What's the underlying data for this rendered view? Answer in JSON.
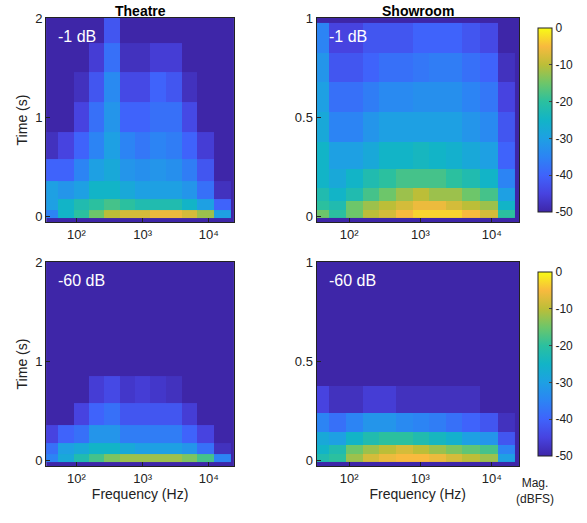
{
  "chart_data": [
    {
      "type": "heatmap",
      "title": "Theatre",
      "annotation": "-1 dB",
      "ylabel": "Time (s)",
      "log": "x",
      "xlim": [
        35,
        24000
      ],
      "xticks": [
        {
          "value": 100,
          "label": "10²"
        },
        {
          "value": 1000,
          "label": "10³"
        },
        {
          "value": 10000,
          "label": "10⁴"
        }
      ],
      "ylim": [
        -0.06,
        2
      ],
      "yticks": [
        0,
        1,
        2
      ],
      "x": [
        40,
        70,
        120,
        200,
        350,
        600,
        1000,
        1700,
        3000,
        5000,
        9000,
        16000
      ],
      "y": [
        0.02,
        0.1,
        0.25,
        0.45,
        0.7,
        1.0,
        1.3,
        1.6,
        1.9
      ],
      "z": [
        [
          -35,
          -25,
          -20,
          -15,
          -10,
          -8,
          -8,
          -6,
          -6,
          -8,
          -12,
          -30
        ],
        [
          -30,
          -25,
          -22,
          -20,
          -18,
          -20,
          -22,
          -22,
          -22,
          -25,
          -30,
          -40
        ],
        [
          -30,
          -32,
          -30,
          -25,
          -25,
          -28,
          -30,
          -30,
          -30,
          -32,
          -38,
          -48
        ],
        [
          -40,
          -40,
          -35,
          -30,
          -28,
          -32,
          -33,
          -32,
          -33,
          -36,
          -42,
          -50
        ],
        [
          -48,
          -45,
          -40,
          -35,
          -30,
          -35,
          -37,
          -35,
          -36,
          -40,
          -46,
          -50
        ],
        [
          -50,
          -50,
          -45,
          -38,
          -32,
          -40,
          -40,
          -38,
          -38,
          -44,
          -50,
          -50
        ],
        [
          -50,
          -50,
          -48,
          -42,
          -34,
          -44,
          -44,
          -40,
          -42,
          -48,
          -50,
          -50
        ],
        [
          -50,
          -50,
          -50,
          -46,
          -38,
          -48,
          -48,
          -46,
          -46,
          -50,
          -50,
          -50
        ],
        [
          -50,
          -50,
          -50,
          -50,
          -42,
          -50,
          -50,
          -50,
          -50,
          -50,
          -50,
          -50
        ]
      ],
      "zlim": [
        -50,
        0
      ]
    },
    {
      "type": "heatmap",
      "title": "Showroom",
      "annotation": "-1 dB",
      "log": "x",
      "xlim": [
        35,
        24000
      ],
      "xticks": [
        {
          "value": 100,
          "label": "10²"
        },
        {
          "value": 1000,
          "label": "10³"
        },
        {
          "value": 10000,
          "label": "10⁴"
        }
      ],
      "ylim": [
        -0.03,
        1
      ],
      "yticks": [
        0,
        0.5,
        1
      ],
      "x": [
        40,
        70,
        120,
        200,
        350,
        600,
        1000,
        1700,
        3000,
        5000,
        9000,
        16000
      ],
      "y": [
        0.01,
        0.05,
        0.1,
        0.18,
        0.3,
        0.45,
        0.6,
        0.75,
        0.9
      ],
      "z": [
        [
          -15,
          -20,
          -15,
          -10,
          -8,
          -5,
          -3,
          -3,
          -3,
          -5,
          -8,
          -20
        ],
        [
          -20,
          -22,
          -15,
          -12,
          -10,
          -8,
          -6,
          -6,
          -8,
          -10,
          -12,
          -25
        ],
        [
          -22,
          -25,
          -22,
          -18,
          -15,
          -12,
          -10,
          -12,
          -12,
          -15,
          -18,
          -30
        ],
        [
          -25,
          -28,
          -25,
          -22,
          -20,
          -18,
          -18,
          -18,
          -20,
          -22,
          -25,
          -35
        ],
        [
          -25,
          -30,
          -30,
          -28,
          -25,
          -25,
          -24,
          -25,
          -26,
          -28,
          -30,
          -40
        ],
        [
          -28,
          -35,
          -35,
          -32,
          -30,
          -30,
          -30,
          -30,
          -30,
          -32,
          -34,
          -42
        ],
        [
          -30,
          -38,
          -38,
          -36,
          -34,
          -34,
          -33,
          -33,
          -33,
          -35,
          -37,
          -45
        ],
        [
          -32,
          -42,
          -42,
          -40,
          -38,
          -38,
          -37,
          -36,
          -36,
          -38,
          -40,
          -48
        ],
        [
          -35,
          -45,
          -45,
          -42,
          -42,
          -42,
          -40,
          -40,
          -40,
          -42,
          -44,
          -50
        ]
      ],
      "zlim": [
        -50,
        0
      ],
      "colorbar": {
        "range": [
          -50,
          0
        ],
        "ticks": [
          0,
          -10,
          -20,
          -30,
          -40,
          -50
        ]
      }
    },
    {
      "type": "heatmap",
      "annotation": "-60 dB",
      "xlabel": "Frequency (Hz)",
      "ylabel": "Time (s)",
      "log": "x",
      "xlim": [
        35,
        24000
      ],
      "xticks": [
        {
          "value": 100,
          "label": "10²"
        },
        {
          "value": 1000,
          "label": "10³"
        },
        {
          "value": 10000,
          "label": "10⁴"
        }
      ],
      "ylim": [
        -0.06,
        2
      ],
      "yticks": [
        0,
        1,
        2
      ],
      "x": [
        40,
        70,
        120,
        200,
        350,
        600,
        1000,
        1700,
        3000,
        5000,
        9000,
        16000
      ],
      "y": [
        0.02,
        0.1,
        0.25,
        0.45,
        0.7,
        1.0,
        1.3,
        1.6,
        1.9
      ],
      "z": [
        [
          -35,
          -28,
          -22,
          -18,
          -14,
          -12,
          -12,
          -12,
          -12,
          -14,
          -18,
          -35
        ],
        [
          -38,
          -30,
          -28,
          -25,
          -25,
          -28,
          -30,
          -30,
          -30,
          -32,
          -38,
          -48
        ],
        [
          -45,
          -40,
          -38,
          -32,
          -32,
          -36,
          -36,
          -36,
          -36,
          -40,
          -45,
          -50
        ],
        [
          -50,
          -50,
          -45,
          -40,
          -38,
          -42,
          -42,
          -42,
          -42,
          -46,
          -50,
          -50
        ],
        [
          -50,
          -50,
          -50,
          -46,
          -44,
          -47,
          -46,
          -47,
          -48,
          -50,
          -50,
          -50
        ],
        [
          -50,
          -50,
          -50,
          -50,
          -50,
          -50,
          -50,
          -50,
          -50,
          -50,
          -50,
          -50
        ],
        [
          -50,
          -50,
          -50,
          -50,
          -50,
          -50,
          -50,
          -50,
          -50,
          -50,
          -50,
          -50
        ],
        [
          -50,
          -50,
          -50,
          -50,
          -50,
          -50,
          -50,
          -50,
          -50,
          -50,
          -50,
          -50
        ],
        [
          -50,
          -50,
          -50,
          -50,
          -50,
          -50,
          -50,
          -50,
          -50,
          -50,
          -50,
          -50
        ]
      ],
      "zlim": [
        -50,
        0
      ]
    },
    {
      "type": "heatmap",
      "annotation": "-60 dB",
      "xlabel": "Frequency (Hz)",
      "log": "x",
      "xlim": [
        35,
        24000
      ],
      "xticks": [
        {
          "value": 100,
          "label": "10²"
        },
        {
          "value": 1000,
          "label": "10³"
        },
        {
          "value": 10000,
          "label": "10⁴"
        }
      ],
      "ylim": [
        -0.03,
        1
      ],
      "yticks": [
        0,
        0.5,
        1
      ],
      "x": [
        40,
        70,
        120,
        200,
        350,
        600,
        1000,
        1700,
        3000,
        5000,
        9000,
        16000
      ],
      "y": [
        0.01,
        0.05,
        0.1,
        0.18,
        0.3,
        0.45,
        0.6,
        0.75,
        0.9
      ],
      "z": [
        [
          -22,
          -20,
          -12,
          -8,
          -6,
          -5,
          -5,
          -6,
          -8,
          -10,
          -12,
          -30
        ],
        [
          -25,
          -22,
          -15,
          -12,
          -10,
          -8,
          -10,
          -12,
          -14,
          -16,
          -18,
          -35
        ],
        [
          -28,
          -30,
          -25,
          -22,
          -20,
          -20,
          -22,
          -24,
          -26,
          -30,
          -32,
          -42
        ],
        [
          -35,
          -38,
          -35,
          -32,
          -32,
          -34,
          -35,
          -36,
          -38,
          -40,
          -42,
          -48
        ],
        [
          -45,
          -48,
          -48,
          -46,
          -46,
          -48,
          -48,
          -48,
          -48,
          -48,
          -50,
          -50
        ],
        [
          -50,
          -50,
          -50,
          -50,
          -50,
          -50,
          -50,
          -50,
          -50,
          -50,
          -50,
          -50
        ],
        [
          -50,
          -50,
          -50,
          -50,
          -50,
          -50,
          -50,
          -50,
          -50,
          -50,
          -50,
          -50
        ],
        [
          -50,
          -50,
          -50,
          -50,
          -50,
          -50,
          -50,
          -50,
          -50,
          -50,
          -50,
          -50
        ],
        [
          -50,
          -50,
          -50,
          -50,
          -50,
          -50,
          -50,
          -50,
          -50,
          -50,
          -50,
          -50
        ]
      ],
      "zlim": [
        -50,
        0
      ],
      "colorbar": {
        "range": [
          -50,
          0
        ],
        "ticks": [
          0,
          -10,
          -20,
          -30,
          -40,
          -50
        ],
        "title": "Mag. (dBFS)"
      }
    }
  ]
}
